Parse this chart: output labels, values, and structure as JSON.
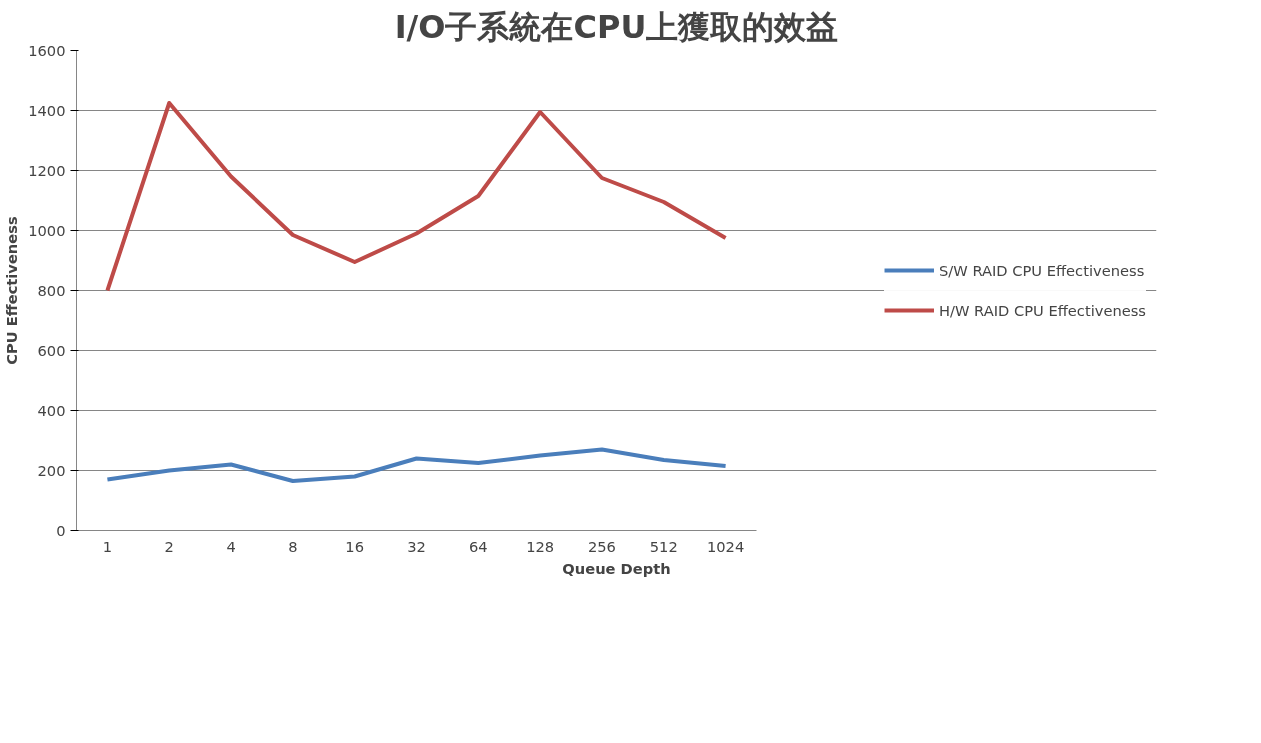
{
  "chart_data": {
    "type": "line",
    "title": "I/O子系統在CPU上獲取的效益",
    "xlabel": "Queue Depth",
    "ylabel": "CPU Effectiveness",
    "categories": [
      "1",
      "2",
      "4",
      "8",
      "16",
      "32",
      "64",
      "128",
      "256",
      "512",
      "1024"
    ],
    "series": [
      {
        "name": "S/W RAID CPU Effectiveness",
        "color": "#4a7ebb",
        "values": [
          170,
          200,
          220,
          165,
          180,
          240,
          225,
          250,
          270,
          235,
          215
        ]
      },
      {
        "name": "H/W RAID CPU Effectiveness",
        "color": "#be4b48",
        "values": [
          800,
          1425,
          1180,
          985,
          895,
          990,
          1115,
          1395,
          1175,
          1095,
          975
        ]
      }
    ],
    "ylim": [
      0,
      1600
    ],
    "yticks": [
      0,
      200,
      400,
      600,
      800,
      1000,
      1200,
      1400,
      1600
    ],
    "grid": "y",
    "legend": "right",
    "marker": "none",
    "line_style": "solid"
  }
}
